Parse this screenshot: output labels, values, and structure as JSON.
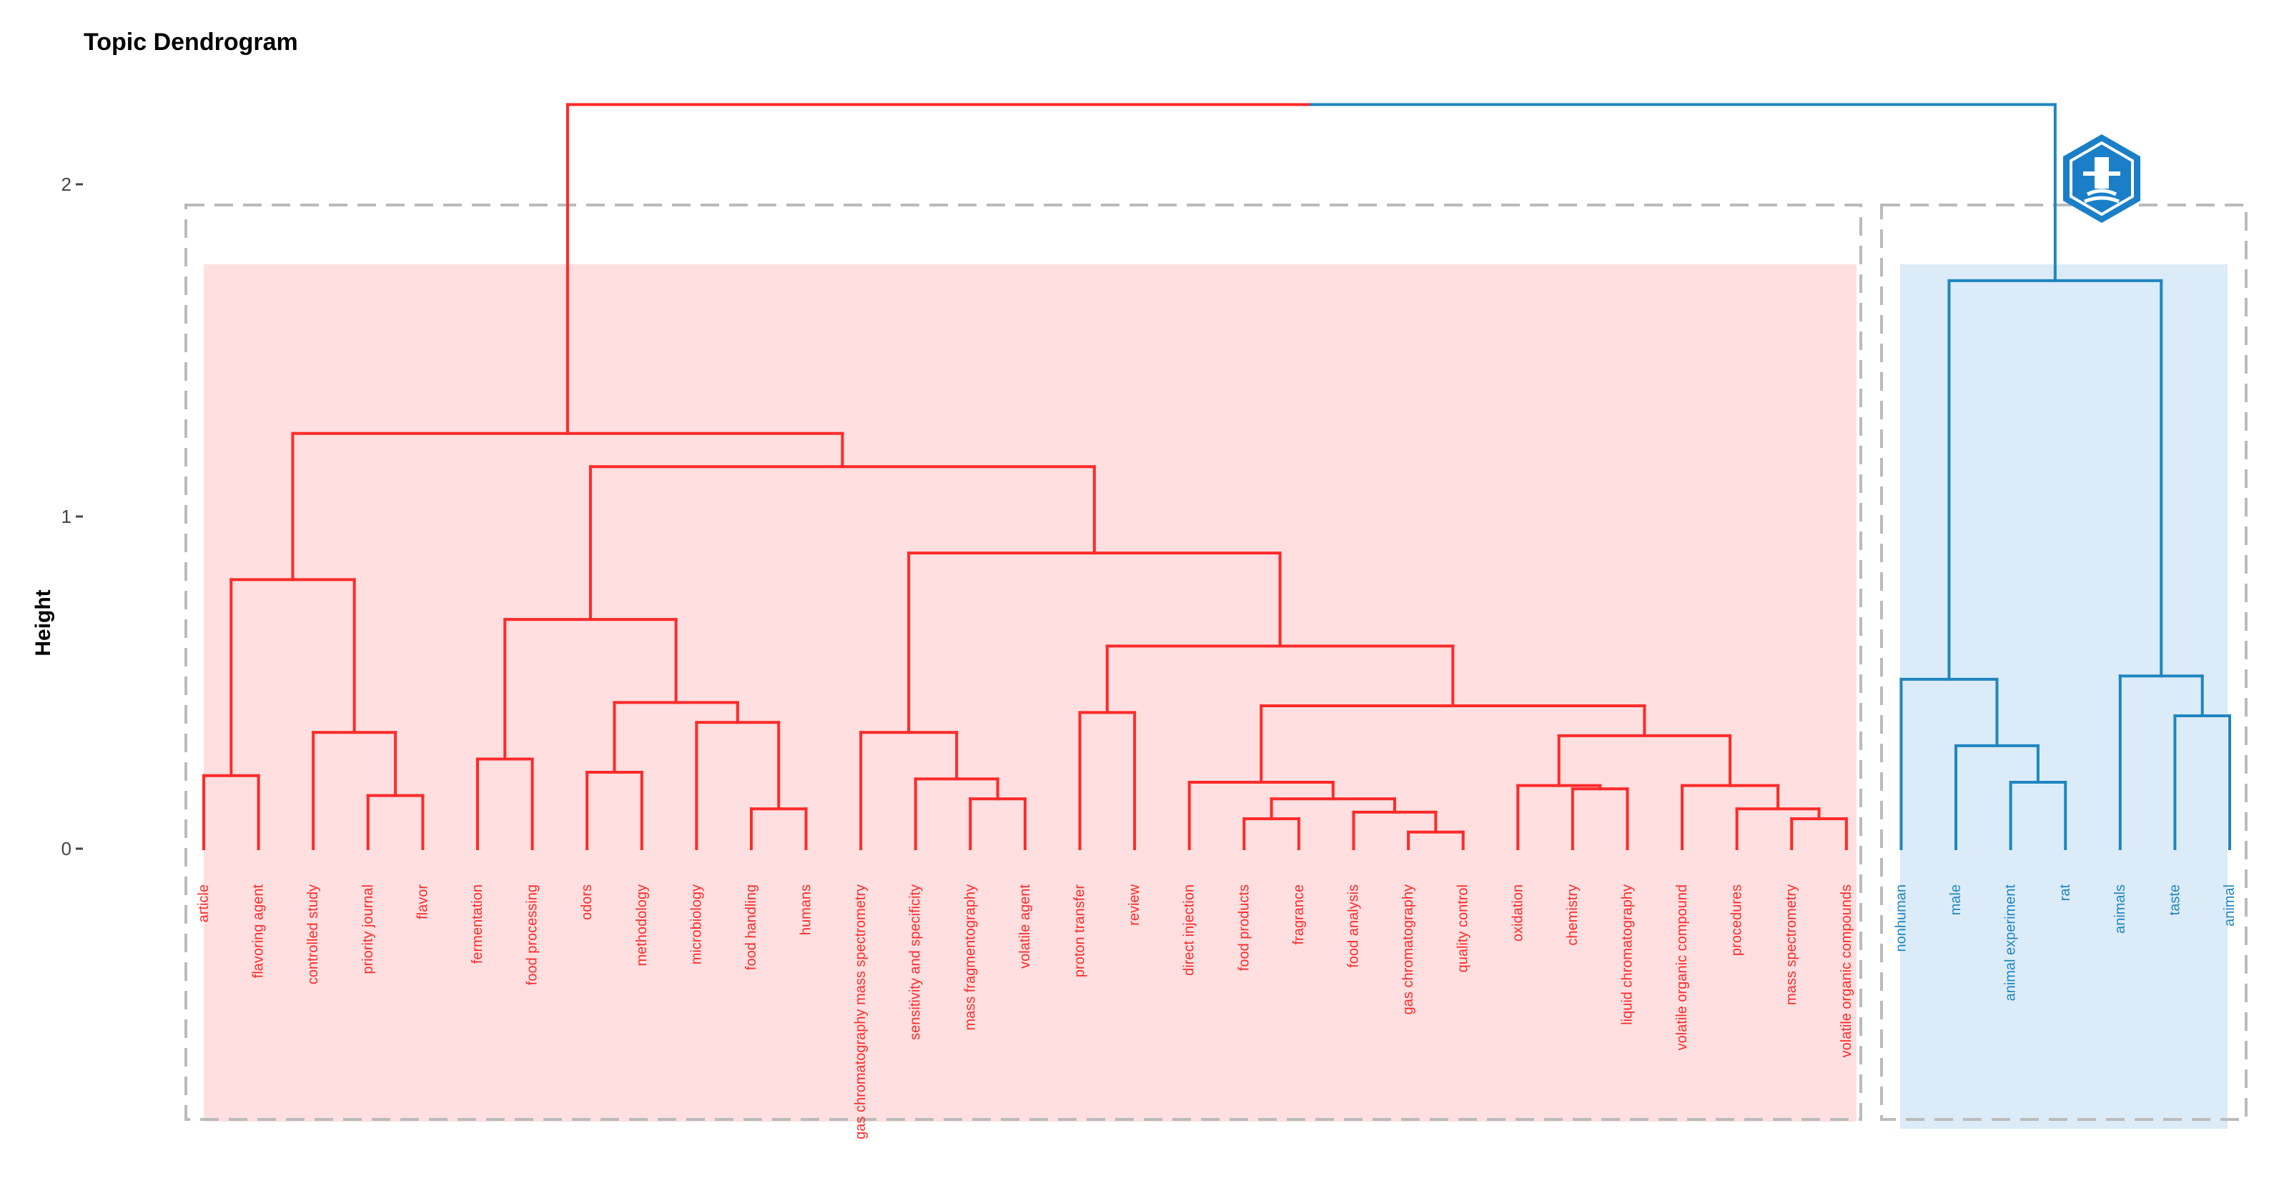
{
  "chart_data": {
    "type": "dendrogram",
    "title": "Topic Dendrogram",
    "ylabel": "Height",
    "ylim": [
      0,
      2.2
    ],
    "y_ticks": [
      0,
      1,
      2
    ],
    "colors": {
      "cluster_1": "#ff2a2a",
      "cluster_2": "#1e86c0",
      "box": "#bbbbbb",
      "fill_1": "#ffdfdf",
      "fill_2": "#dbebf7"
    },
    "leaves": [
      "article",
      "flavoring agent",
      "controlled study",
      "priority journal",
      "flavor",
      "fermentation",
      "food processing",
      "odors",
      "methodology",
      "microbiology",
      "food handling",
      "humans",
      "gas chromatography mass spectrometry",
      "sensitivity and specificity",
      "mass fragmentography",
      "volatile agent",
      "proton transfer",
      "review",
      "direct injection",
      "food products",
      "fragrance",
      "food analysis",
      "gas chromatography",
      "quality control",
      "oxidation",
      "chemistry",
      "liquid chromatography",
      "volatile organic compound",
      "procedures",
      "mass spectrometry",
      "volatile organic compounds",
      "nonhuman",
      "male",
      "animal experiment",
      "rat",
      "animals",
      "taste",
      "animal"
    ],
    "leaf_cluster": [
      1,
      1,
      1,
      1,
      1,
      1,
      1,
      1,
      1,
      1,
      1,
      1,
      1,
      1,
      1,
      1,
      1,
      1,
      1,
      1,
      1,
      1,
      1,
      1,
      1,
      1,
      1,
      1,
      1,
      1,
      1,
      2,
      2,
      2,
      2,
      2,
      2,
      2
    ],
    "merges": [
      {
        "a": "L0",
        "b": "L1",
        "height": 0.22,
        "cluster": 1
      },
      {
        "a": "L3",
        "b": "L4",
        "height": 0.16,
        "cluster": 1
      },
      {
        "a": "L2",
        "b": "M1",
        "height": 0.35,
        "cluster": 1
      },
      {
        "a": "M0",
        "b": "M2",
        "height": 0.81,
        "cluster": 1
      },
      {
        "a": "L5",
        "b": "L6",
        "height": 0.27,
        "cluster": 1
      },
      {
        "a": "L7",
        "b": "L8",
        "height": 0.23,
        "cluster": 1
      },
      {
        "a": "L10",
        "b": "L11",
        "height": 0.12,
        "cluster": 1
      },
      {
        "a": "L9",
        "b": "M6",
        "height": 0.38,
        "cluster": 1
      },
      {
        "a": "M5",
        "b": "M7",
        "height": 0.44,
        "cluster": 1
      },
      {
        "a": "M4",
        "b": "M8",
        "height": 0.69,
        "cluster": 1
      },
      {
        "a": "L14",
        "b": "L15",
        "height": 0.15,
        "cluster": 1
      },
      {
        "a": "L13",
        "b": "M10",
        "height": 0.21,
        "cluster": 1
      },
      {
        "a": "L12",
        "b": "M11",
        "height": 0.35,
        "cluster": 1
      },
      {
        "a": "L16",
        "b": "L17",
        "height": 0.41,
        "cluster": 1
      },
      {
        "a": "L19",
        "b": "L20",
        "height": 0.09,
        "cluster": 1
      },
      {
        "a": "L22",
        "b": "L23",
        "height": 0.05,
        "cluster": 1
      },
      {
        "a": "L21",
        "b": "M15",
        "height": 0.11,
        "cluster": 1
      },
      {
        "a": "M14",
        "b": "M16",
        "height": 0.15,
        "cluster": 1
      },
      {
        "a": "L18",
        "b": "M17",
        "height": 0.2,
        "cluster": 1
      },
      {
        "a": "L25",
        "b": "L26",
        "height": 0.18,
        "cluster": 1
      },
      {
        "a": "L24",
        "b": "M19",
        "height": 0.19,
        "cluster": 1
      },
      {
        "a": "L29",
        "b": "L30",
        "height": 0.09,
        "cluster": 1
      },
      {
        "a": "L28",
        "b": "M21",
        "height": 0.12,
        "cluster": 1
      },
      {
        "a": "L27",
        "b": "M22",
        "height": 0.19,
        "cluster": 1
      },
      {
        "a": "M20",
        "b": "M23",
        "height": 0.34,
        "cluster": 1
      },
      {
        "a": "M18",
        "b": "M24",
        "height": 0.43,
        "cluster": 1
      },
      {
        "a": "M13",
        "b": "M25",
        "height": 0.61,
        "cluster": 1
      },
      {
        "a": "M12",
        "b": "M26",
        "height": 0.89,
        "cluster": 1
      },
      {
        "a": "M9",
        "b": "M27",
        "height": 1.15,
        "cluster": 1
      },
      {
        "a": "M3",
        "b": "M28",
        "height": 1.25,
        "cluster": 1
      },
      {
        "a": "L33",
        "b": "L34",
        "height": 0.2,
        "cluster": 2
      },
      {
        "a": "L32",
        "b": "M30",
        "height": 0.31,
        "cluster": 2
      },
      {
        "a": "L31",
        "b": "M31",
        "height": 0.51,
        "cluster": 2
      },
      {
        "a": "L36",
        "b": "L37",
        "height": 0.4,
        "cluster": 2
      },
      {
        "a": "L35",
        "b": "M33",
        "height": 0.52,
        "cluster": 2
      },
      {
        "a": "M32",
        "b": "M34",
        "height": 1.71,
        "cluster": 2
      },
      {
        "a": "M29",
        "b": "M35",
        "height": 2.24,
        "cluster": 0
      }
    ]
  }
}
